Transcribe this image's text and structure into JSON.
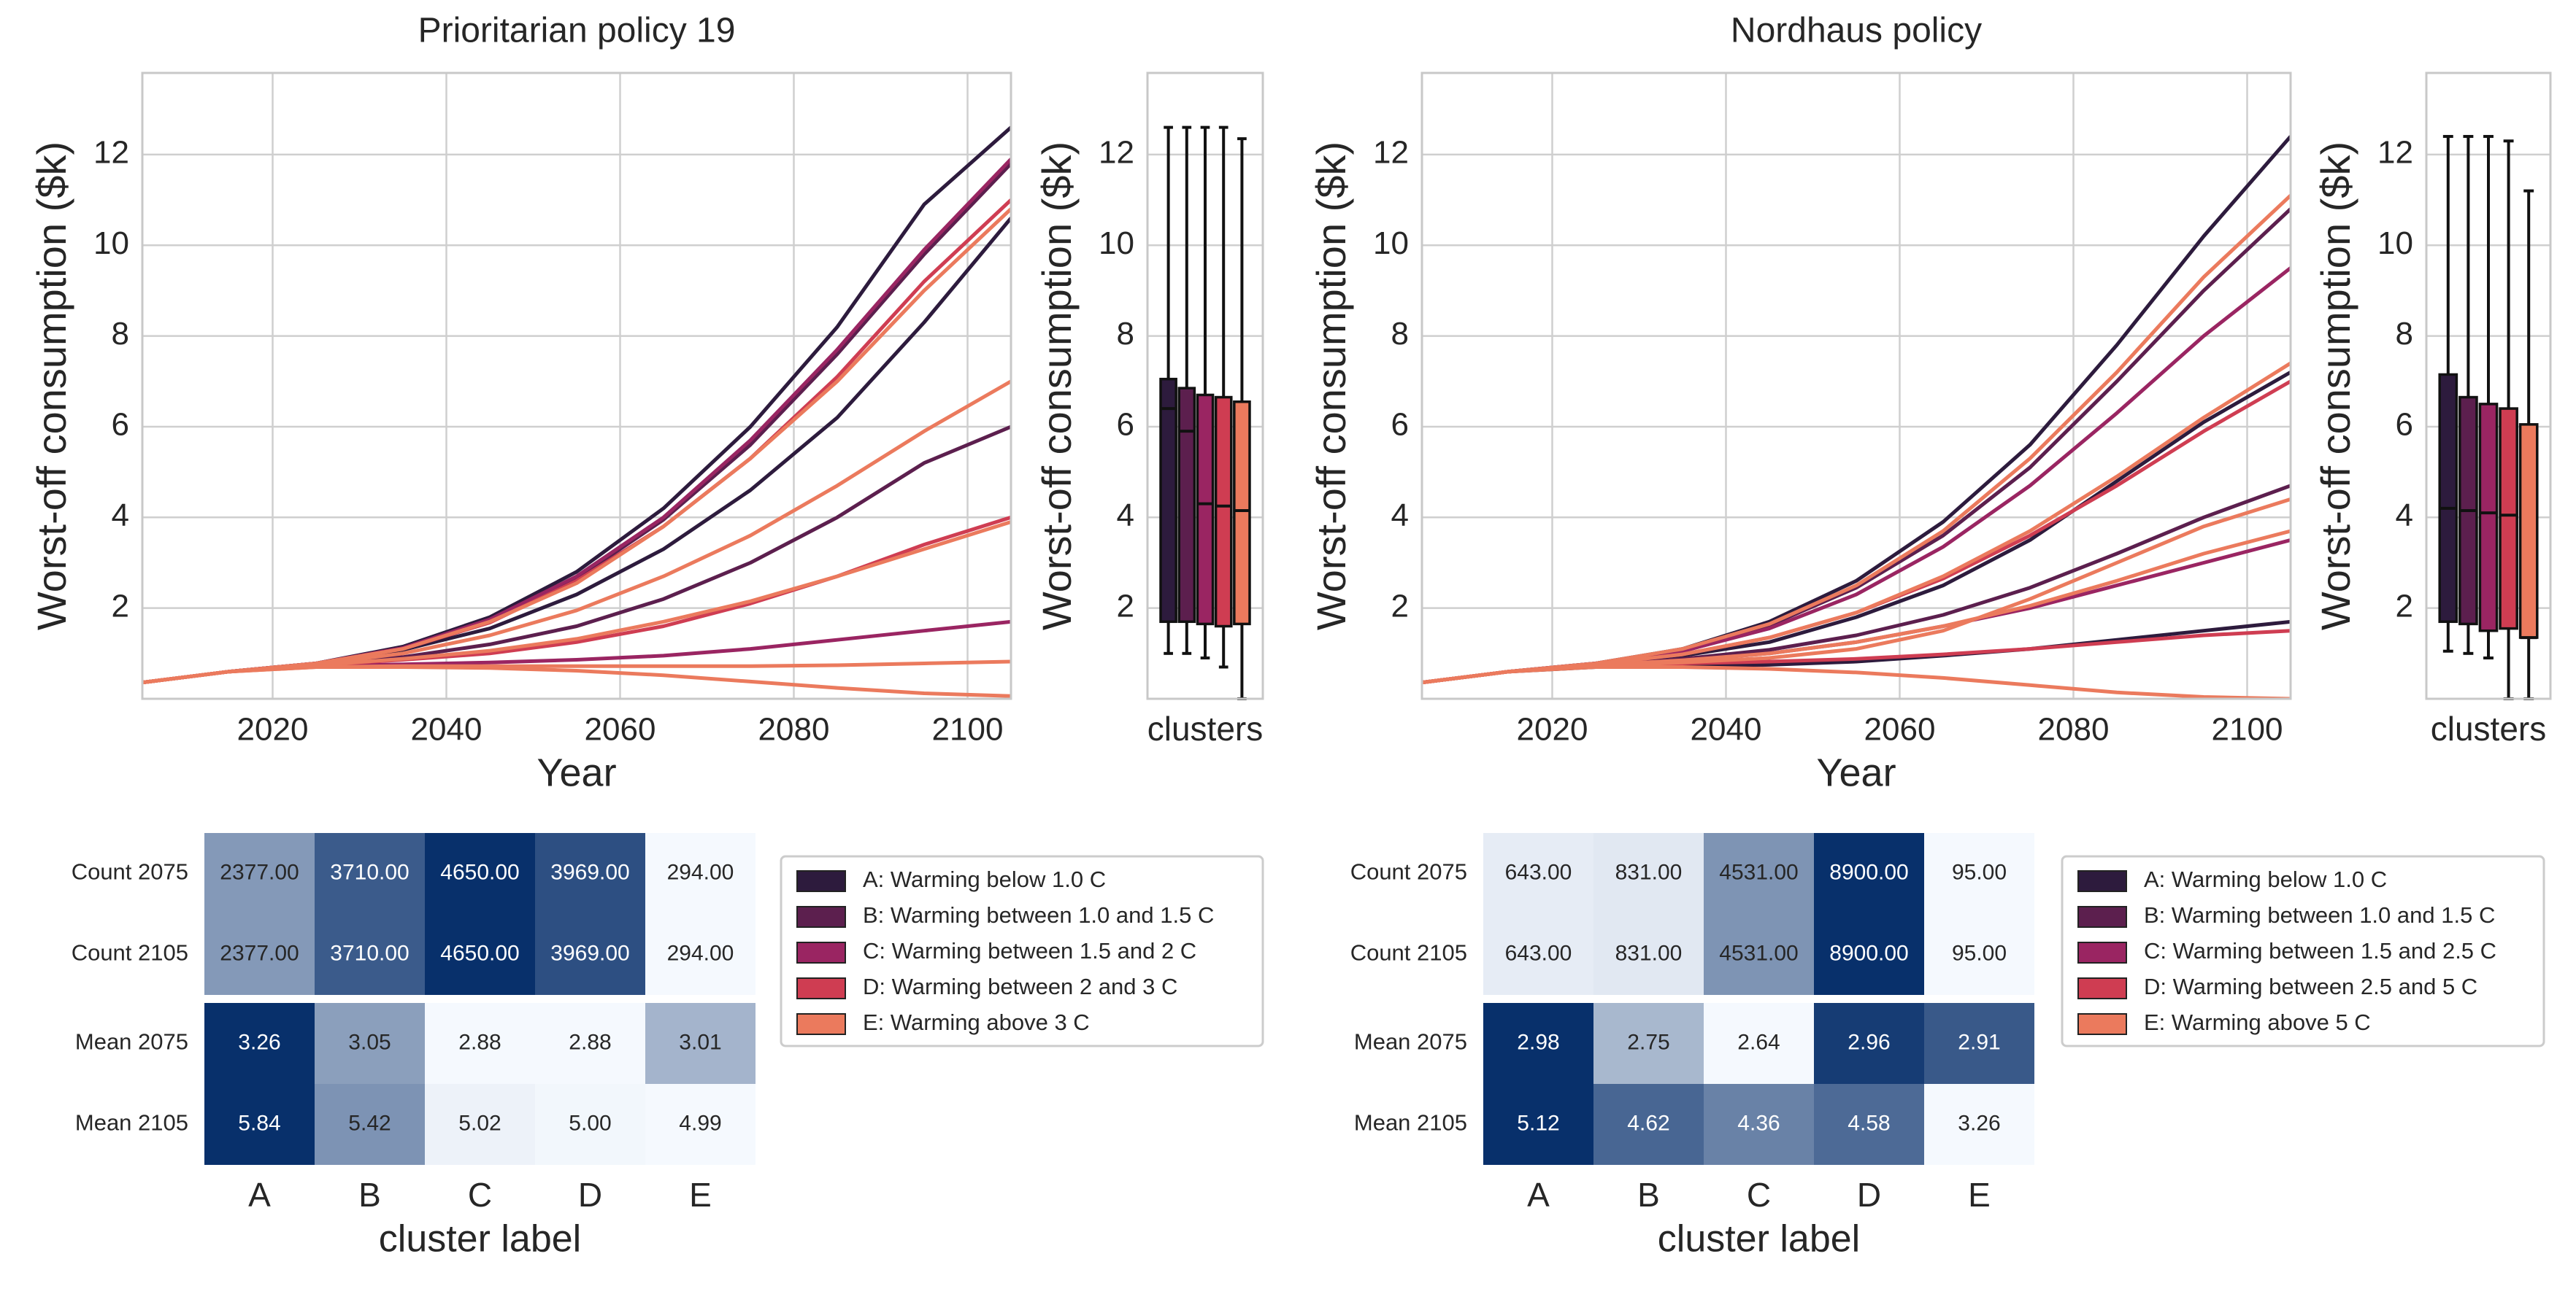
{
  "colors": {
    "A": "#2d1b3d",
    "B": "#5c1f4e",
    "C": "#9a2562",
    "D": "#cf3d52",
    "E": "#eb7a5d",
    "grid": "#cfcfcf",
    "axis": "#c8c8c8",
    "heat_low": "#f5f9fe",
    "heat_high": "#08306b"
  },
  "chart_data": [
    {
      "type": "line",
      "title": "Prioritarian policy 19",
      "xlabel": "Year",
      "ylabel": "Worst-off consumption ($k)",
      "xlim": [
        2005,
        2105
      ],
      "ylim": [
        0,
        13.8
      ],
      "xticks": [
        "2020",
        "2040",
        "2060",
        "2080",
        "2100"
      ],
      "yticks": [
        "2",
        "4",
        "6",
        "8",
        "10",
        "12"
      ],
      "grid": true,
      "years": [
        2005,
        2015,
        2025,
        2035,
        2045,
        2055,
        2065,
        2075,
        2085,
        2095,
        2105
      ],
      "series": [
        {
          "cluster": "A",
          "values": [
            0.36,
            0.6,
            0.78,
            1.08,
            1.55,
            2.3,
            3.3,
            4.6,
            6.2,
            8.3,
            10.6
          ]
        },
        {
          "cluster": "A",
          "values": [
            0.36,
            0.6,
            0.78,
            1.15,
            1.8,
            2.8,
            4.2,
            6.0,
            8.2,
            10.9,
            12.6
          ]
        },
        {
          "cluster": "B",
          "values": [
            0.36,
            0.6,
            0.78,
            1.12,
            1.72,
            2.65,
            3.95,
            5.6,
            7.6,
            9.8,
            11.8
          ]
        },
        {
          "cluster": "B",
          "values": [
            0.36,
            0.6,
            0.76,
            0.92,
            1.2,
            1.6,
            2.2,
            3.0,
            4.0,
            5.2,
            6.0
          ]
        },
        {
          "cluster": "C",
          "values": [
            0.36,
            0.6,
            0.78,
            1.12,
            1.75,
            2.7,
            4.0,
            5.7,
            7.7,
            9.9,
            11.9
          ]
        },
        {
          "cluster": "C",
          "values": [
            0.36,
            0.6,
            0.72,
            0.76,
            0.8,
            0.86,
            0.95,
            1.1,
            1.3,
            1.5,
            1.7
          ]
        },
        {
          "cluster": "D",
          "values": [
            0.36,
            0.6,
            0.78,
            1.1,
            1.68,
            2.6,
            3.8,
            5.3,
            7.1,
            9.2,
            11.0
          ]
        },
        {
          "cluster": "D",
          "values": [
            0.36,
            0.6,
            0.74,
            0.86,
            1.0,
            1.25,
            1.6,
            2.1,
            2.7,
            3.4,
            4.0
          ]
        },
        {
          "cluster": "E",
          "values": [
            0.36,
            0.6,
            0.78,
            1.1,
            1.7,
            2.55,
            3.8,
            5.3,
            7.0,
            9.0,
            10.8
          ]
        },
        {
          "cluster": "E",
          "values": [
            0.36,
            0.6,
            0.76,
            1.0,
            1.4,
            1.95,
            2.7,
            3.6,
            4.7,
            5.9,
            7.0
          ]
        },
        {
          "cluster": "E",
          "values": [
            0.36,
            0.6,
            0.74,
            0.88,
            1.06,
            1.32,
            1.7,
            2.15,
            2.7,
            3.3,
            3.9
          ]
        },
        {
          "cluster": "E",
          "values": [
            0.36,
            0.6,
            0.7,
            0.72,
            0.72,
            0.72,
            0.72,
            0.72,
            0.74,
            0.78,
            0.82
          ]
        },
        {
          "cluster": "E",
          "values": [
            0.36,
            0.6,
            0.7,
            0.7,
            0.68,
            0.62,
            0.52,
            0.38,
            0.24,
            0.12,
            0.06
          ]
        }
      ]
    },
    {
      "type": "box",
      "xlabel": "clusters",
      "ylabel": "Worst-off consumption ($k)",
      "ylim": [
        0,
        13.8
      ],
      "yticks": [
        "2",
        "4",
        "6",
        "8",
        "10",
        "12"
      ],
      "boxes": [
        {
          "cluster": "A",
          "whisker_low": 1.0,
          "q1": 1.7,
          "median": 6.4,
          "q3": 7.05,
          "whisker_high": 12.6
        },
        {
          "cluster": "B",
          "whisker_low": 1.0,
          "q1": 1.7,
          "median": 5.9,
          "q3": 6.85,
          "whisker_high": 12.6
        },
        {
          "cluster": "C",
          "whisker_low": 0.9,
          "q1": 1.65,
          "median": 4.3,
          "q3": 6.7,
          "whisker_high": 12.6
        },
        {
          "cluster": "D",
          "whisker_low": 0.7,
          "q1": 1.6,
          "median": 4.25,
          "q3": 6.65,
          "whisker_high": 12.6
        },
        {
          "cluster": "E",
          "whisker_low": 0.0,
          "q1": 1.65,
          "median": 4.15,
          "q3": 6.55,
          "whisker_high": 12.35
        }
      ]
    },
    {
      "type": "heatmap",
      "xlabel": "cluster label",
      "columns": [
        "A",
        "B",
        "C",
        "D",
        "E"
      ],
      "rows": [
        {
          "label": "Count 2075",
          "values": [
            2377.0,
            3710.0,
            4650.0,
            3969.0,
            294.0
          ],
          "texts": [
            "2377.00",
            "3710.00",
            "4650.00",
            "3969.00",
            "294.00"
          ]
        },
        {
          "label": "Count 2105",
          "values": [
            2377.0,
            3710.0,
            4650.0,
            3969.0,
            294.0
          ],
          "texts": [
            "2377.00",
            "3710.00",
            "4650.00",
            "3969.00",
            "294.00"
          ]
        },
        {
          "label": "Mean 2075",
          "values": [
            3.26,
            3.05,
            2.88,
            2.88,
            3.01
          ],
          "texts": [
            "3.26",
            "3.05",
            "2.88",
            "2.88",
            "3.01"
          ]
        },
        {
          "label": "Mean 2105",
          "values": [
            5.84,
            5.42,
            5.02,
            5.0,
            4.99
          ],
          "texts": [
            "5.84",
            "5.42",
            "5.02",
            "5.00",
            "4.99"
          ]
        }
      ],
      "legend": [
        {
          "key": "A",
          "label": "A: Warming below 1.0 C"
        },
        {
          "key": "B",
          "label": "B: Warming between 1.0 and 1.5 C"
        },
        {
          "key": "C",
          "label": "C: Warming between 1.5 and 2 C"
        },
        {
          "key": "D",
          "label": "D: Warming between 2 and 3 C"
        },
        {
          "key": "E",
          "label": "E: Warming above 3 C"
        }
      ]
    },
    {
      "type": "line",
      "title": "Nordhaus policy",
      "xlabel": "Year",
      "ylabel": "Worst-off consumption ($k)",
      "xlim": [
        2005,
        2105
      ],
      "ylim": [
        0,
        13.8
      ],
      "xticks": [
        "2020",
        "2040",
        "2060",
        "2080",
        "2100"
      ],
      "yticks": [
        "2",
        "4",
        "6",
        "8",
        "10",
        "12"
      ],
      "grid": true,
      "years": [
        2005,
        2015,
        2025,
        2035,
        2045,
        2055,
        2065,
        2075,
        2085,
        2095,
        2105
      ],
      "series": [
        {
          "cluster": "A",
          "values": [
            0.36,
            0.6,
            0.78,
            1.1,
            1.7,
            2.6,
            3.9,
            5.6,
            7.8,
            10.2,
            12.4
          ]
        },
        {
          "cluster": "A",
          "values": [
            0.36,
            0.6,
            0.76,
            0.95,
            1.25,
            1.8,
            2.5,
            3.5,
            4.8,
            6.1,
            7.2
          ]
        },
        {
          "cluster": "A",
          "values": [
            0.36,
            0.6,
            0.7,
            0.72,
            0.75,
            0.82,
            0.95,
            1.1,
            1.3,
            1.5,
            1.7
          ]
        },
        {
          "cluster": "B",
          "values": [
            0.36,
            0.6,
            0.78,
            1.08,
            1.62,
            2.45,
            3.6,
            5.1,
            7.0,
            9.0,
            10.8
          ]
        },
        {
          "cluster": "B",
          "values": [
            0.36,
            0.6,
            0.74,
            0.88,
            1.08,
            1.4,
            1.85,
            2.45,
            3.2,
            4.0,
            4.7
          ]
        },
        {
          "cluster": "C",
          "values": [
            0.36,
            0.6,
            0.78,
            1.05,
            1.55,
            2.3,
            3.35,
            4.7,
            6.3,
            8.0,
            9.5
          ]
        },
        {
          "cluster": "C",
          "values": [
            0.36,
            0.6,
            0.74,
            0.85,
            1.0,
            1.25,
            1.6,
            2.0,
            2.5,
            3.0,
            3.5
          ]
        },
        {
          "cluster": "D",
          "values": [
            0.36,
            0.6,
            0.76,
            0.98,
            1.35,
            1.9,
            2.65,
            3.6,
            4.7,
            5.9,
            7.0
          ]
        },
        {
          "cluster": "D",
          "values": [
            0.36,
            0.6,
            0.72,
            0.78,
            0.82,
            0.88,
            0.98,
            1.1,
            1.25,
            1.4,
            1.5
          ]
        },
        {
          "cluster": "E",
          "values": [
            0.36,
            0.6,
            0.78,
            1.1,
            1.65,
            2.5,
            3.7,
            5.3,
            7.2,
            9.3,
            11.1
          ]
        },
        {
          "cluster": "E",
          "values": [
            0.36,
            0.6,
            0.76,
            0.98,
            1.35,
            1.9,
            2.7,
            3.7,
            4.9,
            6.2,
            7.4
          ]
        },
        {
          "cluster": "E",
          "values": [
            0.36,
            0.6,
            0.74,
            0.85,
            1.0,
            1.25,
            1.6,
            2.05,
            2.6,
            3.2,
            3.7
          ]
        },
        {
          "cluster": "E",
          "values": [
            0.36,
            0.6,
            0.7,
            0.7,
            0.66,
            0.58,
            0.46,
            0.3,
            0.14,
            0.04,
            0.0
          ]
        },
        {
          "cluster": "E",
          "values": [
            0.36,
            0.6,
            0.72,
            0.8,
            0.9,
            1.1,
            1.5,
            2.2,
            3.0,
            3.8,
            4.4
          ]
        }
      ]
    },
    {
      "type": "box",
      "xlabel": "clusters",
      "ylabel": "Worst-off consumption ($k)",
      "ylim": [
        0,
        13.8
      ],
      "yticks": [
        "2",
        "4",
        "6",
        "8",
        "10",
        "12"
      ],
      "boxes": [
        {
          "cluster": "A",
          "whisker_low": 1.05,
          "q1": 1.7,
          "median": 4.2,
          "q3": 7.15,
          "whisker_high": 12.4
        },
        {
          "cluster": "B",
          "whisker_low": 1.0,
          "q1": 1.65,
          "median": 4.15,
          "q3": 6.65,
          "whisker_high": 12.4
        },
        {
          "cluster": "C",
          "whisker_low": 0.9,
          "q1": 1.5,
          "median": 4.1,
          "q3": 6.5,
          "whisker_high": 12.4
        },
        {
          "cluster": "D",
          "whisker_low": 0.0,
          "q1": 1.55,
          "median": 4.05,
          "q3": 6.4,
          "whisker_high": 12.3
        },
        {
          "cluster": "E",
          "whisker_low": 0.0,
          "q1": 1.35,
          "median": 1.35,
          "q3": 6.05,
          "whisker_high": 11.2
        }
      ]
    },
    {
      "type": "heatmap",
      "xlabel": "cluster label",
      "columns": [
        "A",
        "B",
        "C",
        "D",
        "E"
      ],
      "rows": [
        {
          "label": "Count 2075",
          "values": [
            643.0,
            831.0,
            4531.0,
            8900.0,
            95.0
          ],
          "texts": [
            "643.00",
            "831.00",
            "4531.00",
            "8900.00",
            "95.00"
          ]
        },
        {
          "label": "Count 2105",
          "values": [
            643.0,
            831.0,
            4531.0,
            8900.0,
            95.0
          ],
          "texts": [
            "643.00",
            "831.00",
            "4531.00",
            "8900.00",
            "95.00"
          ]
        },
        {
          "label": "Mean 2075",
          "values": [
            2.98,
            2.75,
            2.64,
            2.96,
            2.91
          ],
          "texts": [
            "2.98",
            "2.75",
            "2.64",
            "2.96",
            "2.91"
          ]
        },
        {
          "label": "Mean 2105",
          "values": [
            5.12,
            4.62,
            4.36,
            4.58,
            3.26
          ],
          "texts": [
            "5.12",
            "4.62",
            "4.36",
            "4.58",
            "3.26"
          ]
        }
      ],
      "legend": [
        {
          "key": "A",
          "label": "A: Warming below 1.0 C"
        },
        {
          "key": "B",
          "label": "B: Warming between 1.0 and 1.5 C"
        },
        {
          "key": "C",
          "label": "C: Warming between 1.5 and 2.5 C"
        },
        {
          "key": "D",
          "label": "D: Warming between 2.5 and 5 C"
        },
        {
          "key": "E",
          "label": "E: Warming above 5 C"
        }
      ]
    }
  ]
}
